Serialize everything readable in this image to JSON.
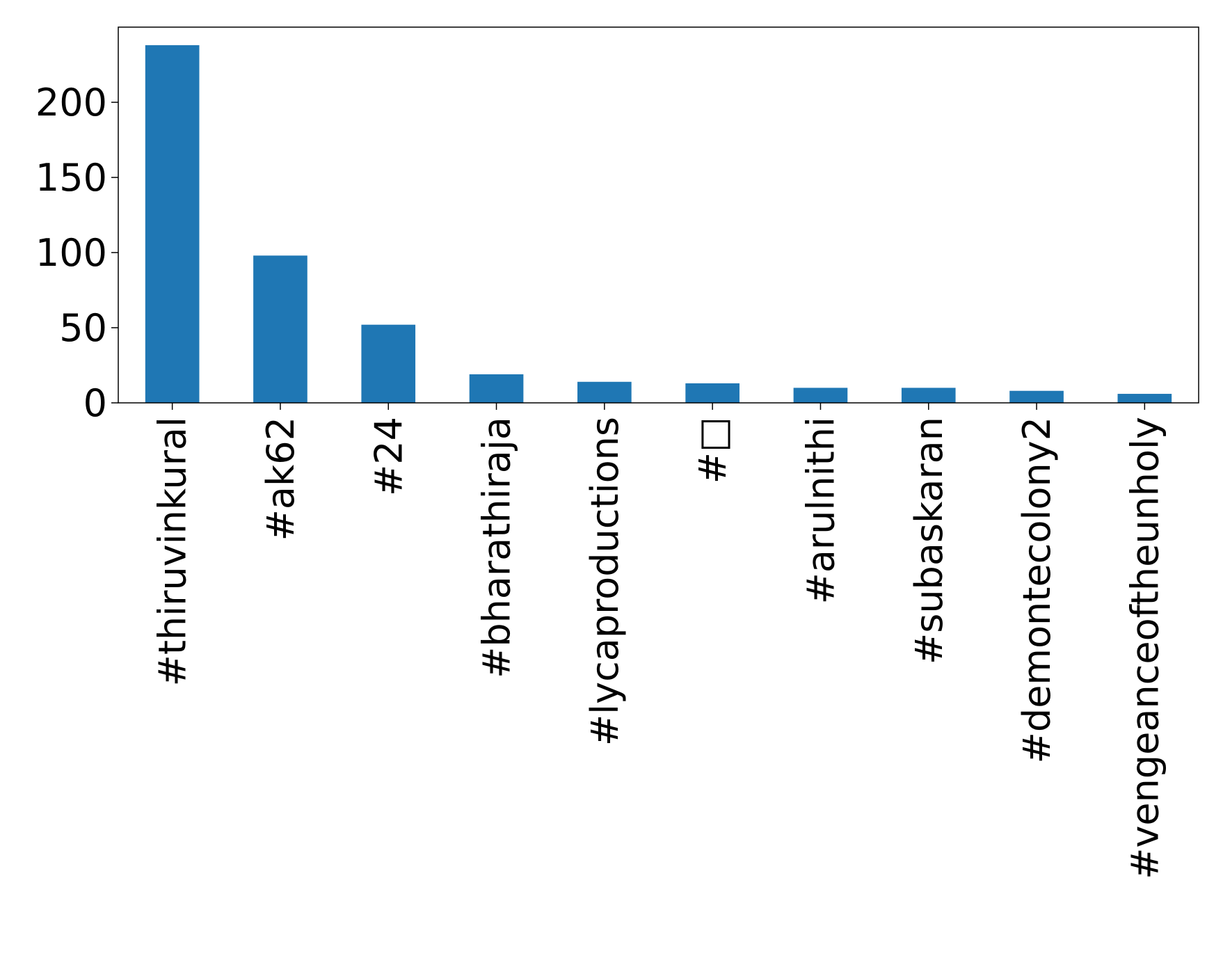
{
  "chart_data": {
    "type": "bar",
    "categories": [
      "#thiruvinkural",
      "#ak62",
      "#24",
      "#bharathiraja",
      "#lycaproductions",
      "#□",
      "#arulnithi",
      "#subaskaran",
      "#demontecolony2",
      "#vengeanceoftheunholy"
    ],
    "values": [
      238,
      98,
      52,
      19,
      14,
      13,
      10,
      10,
      8,
      6
    ],
    "color": "#1f77b4",
    "ylim": [
      0,
      250
    ],
    "yticks": [
      0,
      50,
      100,
      150,
      200
    ],
    "grid": false
  }
}
